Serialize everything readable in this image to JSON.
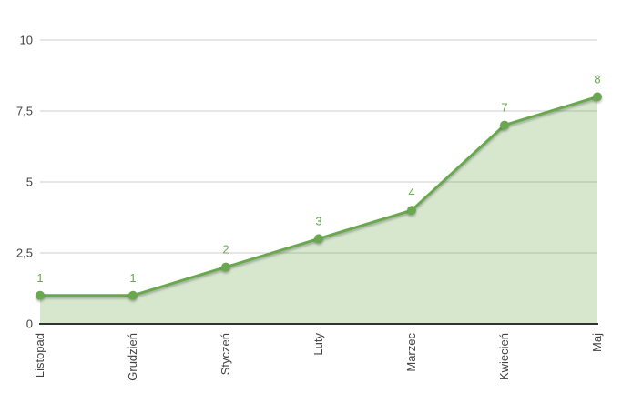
{
  "chart_data": {
    "type": "area",
    "title": "",
    "xlabel": "",
    "ylabel": "",
    "categories": [
      "Listopad",
      "Grudzień",
      "Styczeń",
      "Luty",
      "Marzec",
      "Kwiecień",
      "Maj"
    ],
    "values": [
      1,
      1,
      2,
      3,
      4,
      7,
      8
    ],
    "point_labels": [
      "1",
      "1",
      "2",
      "3",
      "4",
      "7",
      "8"
    ],
    "series": [
      {
        "name": "series-1",
        "values": [
          1,
          1,
          2,
          3,
          4,
          7,
          8
        ]
      }
    ],
    "y_ticks": [
      {
        "value": 0,
        "label": "0"
      },
      {
        "value": 2.5,
        "label": "2,5"
      },
      {
        "value": 5,
        "label": "5"
      },
      {
        "value": 7.5,
        "label": "7,5"
      },
      {
        "value": 10,
        "label": "10"
      }
    ],
    "ylim": [
      0,
      10
    ],
    "grid": true,
    "legend": "none",
    "x_label_rotation_deg": -90,
    "colors": {
      "line": "#6aa84f",
      "fill_rgba": "rgba(106,168,79,0.28)",
      "point": "#6aa84f",
      "point_label": "#6aa84f",
      "axis_text": "#444444",
      "gridline": "#cccccc",
      "baseline": "#333333",
      "background": "#ffffff"
    }
  }
}
